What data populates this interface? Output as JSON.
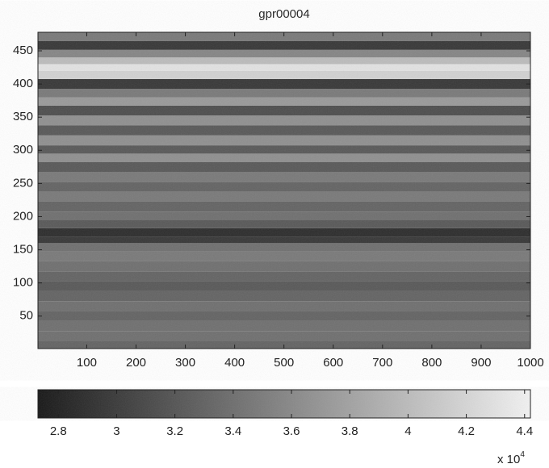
{
  "chart_data": {
    "type": "heatmap",
    "title": "gpr00004",
    "xlim": [
      1,
      1000
    ],
    "xticks": [
      100,
      200,
      300,
      400,
      500,
      600,
      700,
      800,
      900,
      1000
    ],
    "ylim": [
      1,
      478
    ],
    "yticks": [
      50,
      100,
      150,
      200,
      250,
      300,
      350,
      400,
      450
    ],
    "y": [
      5,
      20,
      35,
      50,
      65,
      80,
      95,
      110,
      125,
      140,
      155,
      165,
      175,
      190,
      200,
      215,
      230,
      245,
      260,
      275,
      290,
      300,
      315,
      330,
      345,
      360,
      375,
      385,
      400,
      415,
      425,
      435,
      445,
      458,
      472
    ],
    "values": [
      3.32,
      3.41,
      3.41,
      3.32,
      3.41,
      3.32,
      3.24,
      3.32,
      3.41,
      3.49,
      3.41,
      2.98,
      2.9,
      3.24,
      3.41,
      3.32,
      3.49,
      3.32,
      3.49,
      3.24,
      3.66,
      3.24,
      3.66,
      3.24,
      3.66,
      3.15,
      3.74,
      3.49,
      2.98,
      4.17,
      4.3,
      4.0,
      3.58,
      2.98,
      3.49
    ],
    "colormap": [
      "#161616",
      "#f2f2f2"
    ],
    "clim": [
      2.73,
      4.42
    ],
    "cticks": [
      2.8,
      3,
      3.2,
      3.4,
      3.6,
      3.8,
      4,
      4.2,
      4.4
    ],
    "cbar_multiplier": {
      "base": "x 10",
      "exponent": "4"
    }
  }
}
